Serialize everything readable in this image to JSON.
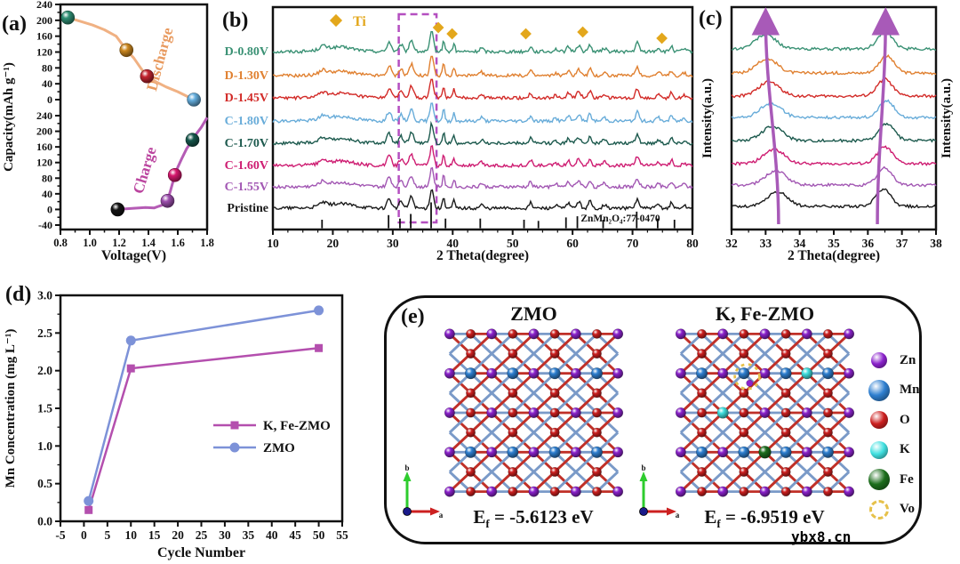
{
  "watermark": {
    "text": "ybx8.cn"
  },
  "panels": {
    "a": {
      "label": "(a)"
    },
    "b": {
      "label": "(b)"
    },
    "c": {
      "label": "(c)"
    },
    "d": {
      "label": "(d)"
    },
    "e": {
      "label": "(e)",
      "left": {
        "title": "ZMO",
        "ef": {
          "sym": "E",
          "sub": "f",
          "eq": " = ",
          "value": "-5.6123",
          "unit": " eV"
        }
      },
      "right": {
        "title": "K, Fe-ZMO",
        "ef": {
          "sym": "E",
          "sub": "f",
          "eq": " = ",
          "value": "-6.9519",
          "unit": " eV"
        },
        "substitutions": [
          {
            "i": 6,
            "j": 2,
            "el": "K"
          },
          {
            "i": 2,
            "j": 4,
            "el": "K"
          },
          {
            "i": 4,
            "j": 6,
            "el": "Fe"
          }
        ],
        "vacancy": {
          "i": 3,
          "j": 2
        }
      },
      "axis_glyph": {
        "x_label": "a",
        "y_label": "b"
      },
      "bond_colors": {
        "red": "#c03028",
        "blue": "#7a9ac8"
      },
      "legend": [
        {
          "name": "Zn",
          "color": "#8b22cc",
          "size": 18
        },
        {
          "name": "Mn",
          "color": "#2e7fd0",
          "size": 24
        },
        {
          "name": "O",
          "color": "#cc1f1f",
          "size": 20
        },
        {
          "name": "K",
          "color": "#40e0e0",
          "size": 20
        },
        {
          "name": "Fe",
          "color": "#1d6e1d",
          "size": 24
        },
        {
          "name": "Vo",
          "color": "#e6c14a",
          "size": 22,
          "style": "dashed"
        }
      ]
    }
  },
  "chart_data": [
    {
      "id": "a",
      "type": "line",
      "xlabel": "Voltage(V)",
      "ylabel": "Capacity(mAh g⁻¹)",
      "xlim": [
        0.8,
        1.8
      ],
      "x_ticks": [
        0.8,
        1.0,
        1.2,
        1.4,
        1.6,
        1.8
      ],
      "top_axis": {
        "name": "Discharge",
        "color": "#e89a5f",
        "ylim": [
          0,
          240
        ],
        "ticks": [
          240,
          200,
          160,
          120,
          80,
          40,
          0
        ]
      },
      "bottom_axis": {
        "name": "Charge",
        "color": "#bb459f",
        "ylim": [
          -40,
          240
        ],
        "ticks": [
          240,
          200,
          160,
          120,
          80,
          40,
          0,
          -40
        ]
      },
      "series": [
        {
          "name": "Discharge",
          "axis": "top",
          "color": "#f0b183",
          "points": [
            [
              0.85,
              207
            ],
            [
              0.93,
              198
            ],
            [
              1.02,
              188
            ],
            [
              1.1,
              176
            ],
            [
              1.18,
              160
            ],
            [
              1.25,
              125
            ],
            [
              1.3,
              105
            ],
            [
              1.35,
              78
            ],
            [
              1.39,
              59
            ],
            [
              1.45,
              45
            ],
            [
              1.52,
              32
            ],
            [
              1.6,
              20
            ],
            [
              1.66,
              9
            ],
            [
              1.71,
              0
            ]
          ],
          "markers": [
            {
              "x": 0.85,
              "y": 207,
              "color": "#2f8f74",
              "series": "D-0.80V"
            },
            {
              "x": 1.25,
              "y": 125,
              "color": "#cc8820",
              "series": "D-1.30V"
            },
            {
              "x": 1.39,
              "y": 59,
              "color": "#c42430",
              "series": "D-1.45V"
            },
            {
              "x": 1.71,
              "y": 0,
              "color": "#64aede",
              "series": "C-1.80V"
            }
          ]
        },
        {
          "name": "Charge",
          "axis": "bottom",
          "color": "#b55cb5",
          "points": [
            [
              1.19,
              0
            ],
            [
              1.3,
              3
            ],
            [
              1.38,
              5
            ],
            [
              1.44,
              4
            ],
            [
              1.47,
              8
            ],
            [
              1.5,
              12
            ],
            [
              1.53,
              22
            ],
            [
              1.55,
              48
            ],
            [
              1.57,
              75
            ],
            [
              1.58,
              88
            ],
            [
              1.6,
              108
            ],
            [
              1.63,
              132
            ],
            [
              1.66,
              155
            ],
            [
              1.7,
              178
            ],
            [
              1.73,
              195
            ],
            [
              1.76,
              210
            ],
            [
              1.8,
              235
            ]
          ],
          "markers": [
            {
              "x": 1.19,
              "y": 0,
              "color": "#141414",
              "series": "Pristine"
            },
            {
              "x": 1.53,
              "y": 22,
              "color": "#9d4fae",
              "series": "C-1.55V"
            },
            {
              "x": 1.58,
              "y": 88,
              "color": "#d6186e",
              "series": "C-1.60V"
            },
            {
              "x": 1.7,
              "y": 178,
              "color": "#17574c",
              "series": "C-1.70V"
            }
          ]
        }
      ]
    },
    {
      "id": "b",
      "type": "xrd_stack",
      "xlabel": "2 Theta(degree)",
      "xlim": [
        10,
        80
      ],
      "x_ticks": [
        10,
        20,
        30,
        40,
        50,
        60,
        70,
        80
      ],
      "phase_legend": {
        "marker": "diamond",
        "color": "#e3a71c",
        "label": "Ti"
      },
      "series": [
        {
          "label": "D-0.80V",
          "color": "#3a9174",
          "baseline": 58
        },
        {
          "label": "D-1.30V",
          "color": "#e08030",
          "baseline": 85
        },
        {
          "label": "D-1.45V",
          "color": "#d22b28",
          "baseline": 110
        },
        {
          "label": "C-1.80V",
          "color": "#68acd9",
          "baseline": 136
        },
        {
          "label": "C-1.70V",
          "color": "#1d5a4e",
          "baseline": 161
        },
        {
          "label": "C-1.60V",
          "color": "#ce1d72",
          "baseline": 186
        },
        {
          "label": "C-1.55V",
          "color": "#a257b3",
          "baseline": 210
        },
        {
          "label": "Pristine",
          "color": "#1a1a1a",
          "baseline": 234
        }
      ],
      "peaks": [
        [
          18.3,
          4,
          0.5
        ],
        [
          21,
          5,
          2.5
        ],
        [
          29.4,
          11,
          0.35
        ],
        [
          31.4,
          8,
          0.3
        ],
        [
          33.1,
          13,
          0.35
        ],
        [
          36.5,
          22,
          0.3
        ],
        [
          38.5,
          13,
          0.18
        ],
        [
          40.2,
          9,
          0.18
        ],
        [
          44.8,
          4,
          0.3
        ],
        [
          53,
          6,
          0.25
        ],
        [
          57.2,
          3,
          0.3
        ],
        [
          59.3,
          5,
          0.3
        ],
        [
          61,
          7,
          0.35
        ],
        [
          62.9,
          8,
          0.25
        ],
        [
          65.3,
          4,
          0.3
        ],
        [
          70.8,
          10,
          0.3
        ],
        [
          74.3,
          4,
          0.3
        ],
        [
          76.5,
          6,
          0.25
        ],
        [
          78.6,
          3,
          0.3
        ]
      ],
      "ti_diamonds": [
        {
          "x": 37.6,
          "y": 31
        },
        {
          "x": 39.9,
          "y": 38
        },
        {
          "x": 52.2,
          "y": 38
        },
        {
          "x": 61.7,
          "y": 36
        },
        {
          "x": 74.9,
          "y": 43
        }
      ],
      "highlight_box": {
        "x1": 31.0,
        "x2": 37.3,
        "color": "#b44fc0"
      },
      "reference": {
        "label": "ZnMn₂O₄:77-0470",
        "sticks": [
          [
            18.2,
            0.25
          ],
          [
            29.3,
            0.45
          ],
          [
            31.2,
            0.3
          ],
          [
            33,
            0.5
          ],
          [
            36.4,
            1
          ],
          [
            38.8,
            0.3
          ],
          [
            44.6,
            0.3
          ],
          [
            51.9,
            0.25
          ],
          [
            54.3,
            0.2
          ],
          [
            58.9,
            0.35
          ],
          [
            60.8,
            0.4
          ],
          [
            65.1,
            0.25
          ],
          [
            70.7,
            0.6
          ],
          [
            74.2,
            0.3
          ],
          [
            77,
            0.25
          ]
        ]
      }
    },
    {
      "id": "c",
      "type": "xrd_stack",
      "xlabel": "2 Theta(degree)",
      "ylabel_left": "Intensity(a.u.)",
      "ylabel_right": "Intensity(a.u.)",
      "xlim": [
        32,
        38
      ],
      "x_ticks": [
        32,
        33,
        34,
        35,
        36,
        37,
        38
      ],
      "series": [
        {
          "label": "D-0.80V",
          "color": "#3a9174",
          "baseline": 55,
          "peak_left": 33.0,
          "peak_right": 36.5
        },
        {
          "label": "D-1.30V",
          "color": "#e08030",
          "baseline": 82,
          "peak_left": 33.05,
          "peak_right": 36.55
        },
        {
          "label": "D-1.45V",
          "color": "#d22b28",
          "baseline": 108,
          "peak_left": 33.1,
          "peak_right": 36.5
        },
        {
          "label": "C-1.80V",
          "color": "#68acd9",
          "baseline": 132,
          "peak_left": 33.15,
          "peak_right": 36.55
        },
        {
          "label": "C-1.70V",
          "color": "#1d5a4e",
          "baseline": 158,
          "peak_left": 33.2,
          "peak_right": 36.55
        },
        {
          "label": "C-1.60V",
          "color": "#ce1d72",
          "baseline": 184,
          "peak_left": 33.25,
          "peak_right": 36.5
        },
        {
          "label": "C-1.55V",
          "color": "#a257b3",
          "baseline": 208,
          "peak_left": 33.3,
          "peak_right": 36.5
        },
        {
          "label": "Pristine",
          "color": "#1a1a1a",
          "baseline": 232,
          "peak_left": 33.35,
          "peak_right": 36.45
        }
      ],
      "arrows": [
        {
          "x_start": 33.38,
          "x_end": 33.0
        },
        {
          "x_start": 36.28,
          "x_end": 36.52
        }
      ],
      "arrow_color": "#a85ab8"
    },
    {
      "id": "d",
      "type": "line",
      "xlabel": "Cycle Number",
      "ylabel": "Mn Concentration (mg L⁻¹)",
      "xlim": [
        -5,
        55
      ],
      "ylim": [
        0,
        3
      ],
      "x_ticks": [
        -5,
        0,
        5,
        10,
        15,
        20,
        25,
        30,
        35,
        40,
        45,
        50,
        55
      ],
      "y_ticks": [
        "0.0",
        "0.5",
        "1.0",
        "1.5",
        "2.0",
        "2.5",
        "3.0"
      ],
      "series": [
        {
          "name": "K, Fe-ZMO",
          "color": "#b44fae",
          "marker": "square",
          "x": [
            1,
            10,
            50
          ],
          "y": [
            0.15,
            2.03,
            2.3
          ]
        },
        {
          "name": "ZMO",
          "color": "#7d92d8",
          "marker": "circle",
          "x": [
            1,
            10,
            50
          ],
          "y": [
            0.27,
            2.4,
            2.8
          ]
        }
      ],
      "legend_position": "center-right"
    }
  ]
}
